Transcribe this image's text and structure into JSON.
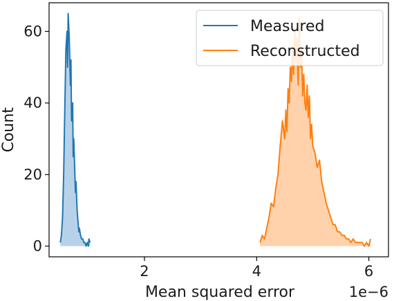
{
  "chart_data": {
    "type": "area",
    "xlabel": "Mean squared error",
    "ylabel": "Count",
    "x_offset_label": "1e−6",
    "xlim": [
      3e-07,
      6.35e-06
    ],
    "ylim": [
      -3,
      68
    ],
    "xticks": [
      {
        "value": 2e-06,
        "label": "2"
      },
      {
        "value": 4e-06,
        "label": "4"
      },
      {
        "value": 6e-06,
        "label": "6"
      }
    ],
    "yticks": [
      {
        "value": 0,
        "label": "0"
      },
      {
        "value": 20,
        "label": "20"
      },
      {
        "value": 40,
        "label": "40"
      },
      {
        "value": 60,
        "label": "60"
      }
    ],
    "legend_position": "top-right",
    "grid": false,
    "series": [
      {
        "name": "Measured",
        "color": "#1f77b4",
        "fill": "#b7d2e8",
        "x": [
          5e-07,
          5.2e-07,
          5.4e-07,
          5.6e-07,
          5.8e-07,
          6e-07,
          6.2e-07,
          6.3e-07,
          6.4e-07,
          6.6e-07,
          6.8e-07,
          6.9e-07,
          7e-07,
          7.2e-07,
          7.3e-07,
          7.4e-07,
          7.6e-07,
          7.7e-07,
          7.8e-07,
          8e-07,
          8.2e-07,
          8.3e-07,
          8.4e-07,
          8.6e-07,
          8.8e-07,
          9e-07,
          9.2e-07,
          9.4e-07,
          9.6e-07,
          9.8e-07,
          1e-06,
          1.01e-06,
          1.03e-06
        ],
        "y": [
          1,
          3,
          8,
          20,
          38,
          55,
          60,
          50,
          65,
          58,
          45,
          52,
          35,
          40,
          25,
          30,
          20,
          15,
          18,
          10,
          6,
          4,
          5,
          3,
          2,
          2,
          1,
          1,
          0,
          1,
          0,
          2,
          1
        ]
      },
      {
        "name": "Reconstructed",
        "color": "#ff7f0e",
        "fill": "#ffd2ab",
        "x": [
          4.06e-06,
          4.1e-06,
          4.14e-06,
          4.18e-06,
          4.22e-06,
          4.26e-06,
          4.3e-06,
          4.34e-06,
          4.38e-06,
          4.42e-06,
          4.46e-06,
          4.5e-06,
          4.52e-06,
          4.54e-06,
          4.56e-06,
          4.58e-06,
          4.6e-06,
          4.62e-06,
          4.64e-06,
          4.66e-06,
          4.68e-06,
          4.7e-06,
          4.72e-06,
          4.74e-06,
          4.76e-06,
          4.78e-06,
          4.8e-06,
          4.82e-06,
          4.84e-06,
          4.86e-06,
          4.88e-06,
          4.9e-06,
          4.92e-06,
          4.94e-06,
          4.96e-06,
          4.98e-06,
          5e-06,
          5.04e-06,
          5.08e-06,
          5.12e-06,
          5.16e-06,
          5.2e-06,
          5.24e-06,
          5.28e-06,
          5.32e-06,
          5.36e-06,
          5.4e-06,
          5.44e-06,
          5.48e-06,
          5.52e-06,
          5.56e-06,
          5.6e-06,
          5.64e-06,
          5.68e-06,
          5.72e-06,
          5.76e-06,
          5.8e-06,
          5.84e-06,
          5.88e-06,
          5.92e-06,
          5.96e-06,
          6e-06,
          6.03e-06
        ],
        "y": [
          1,
          3,
          2,
          5,
          8,
          12,
          11,
          16,
          20,
          28,
          35,
          30,
          38,
          32,
          44,
          40,
          50,
          46,
          55,
          48,
          60,
          52,
          58,
          45,
          64,
          50,
          55,
          42,
          48,
          40,
          38,
          45,
          36,
          42,
          30,
          34,
          28,
          26,
          22,
          24,
          18,
          15,
          12,
          10,
          8,
          6,
          6,
          4,
          4,
          3,
          3,
          2,
          2,
          1,
          2,
          1,
          1,
          1,
          1,
          0,
          1,
          0,
          2
        ]
      }
    ]
  }
}
